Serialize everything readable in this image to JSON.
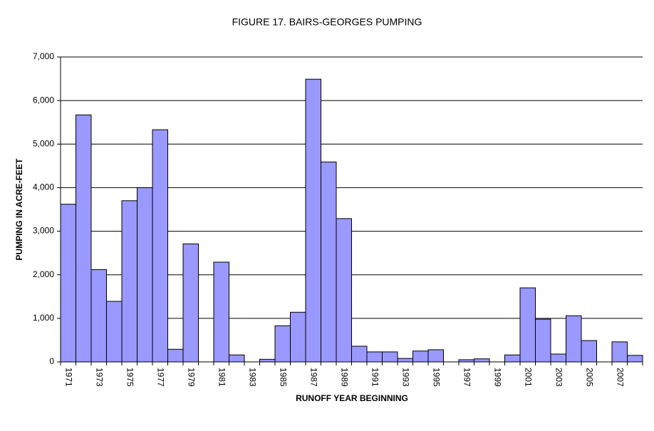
{
  "chart_data": {
    "type": "bar",
    "title": "FIGURE 17. BAIRS-GEORGES PUMPING",
    "x_label": "RUNOFF YEAR BEGINNING",
    "y_label": "PUMPING IN ACRE-FEET",
    "categories": [
      "1971",
      null,
      "1973",
      null,
      "1975",
      null,
      "1977",
      null,
      "1979",
      null,
      "1981",
      null,
      "1983",
      null,
      "1985",
      null,
      "1987",
      null,
      "1989",
      null,
      "1991",
      null,
      "1993",
      null,
      "1995",
      null,
      "1997",
      null,
      "1999",
      null,
      "2001",
      null,
      "2003",
      null,
      "2005",
      null,
      "2007",
      null
    ],
    "values": [
      3620,
      5670,
      2120,
      1390,
      3700,
      4000,
      5330,
      290,
      2710,
      0,
      2290,
      160,
      0,
      60,
      830,
      1140,
      6490,
      4590,
      3290,
      360,
      230,
      230,
      80,
      250,
      280,
      0,
      50,
      70,
      0,
      160,
      1700,
      980,
      180,
      1060,
      490,
      0,
      460,
      150
    ],
    "color": "#9999ff",
    "ylim": [
      0,
      7000
    ],
    "yticks": [
      0,
      {
        "value": 1000,
        "label": "1,000"
      },
      {
        "value": 2000,
        "label": "2,000"
      },
      {
        "value": 3000,
        "label": "3,000"
      },
      {
        "value": 4000,
        "label": "4,000"
      },
      {
        "value": 5000,
        "label": "5,000"
      },
      {
        "value": 6000,
        "label": "6,000"
      },
      {
        "value": 7000,
        "label": "7,000"
      }
    ],
    "grid": true
  }
}
